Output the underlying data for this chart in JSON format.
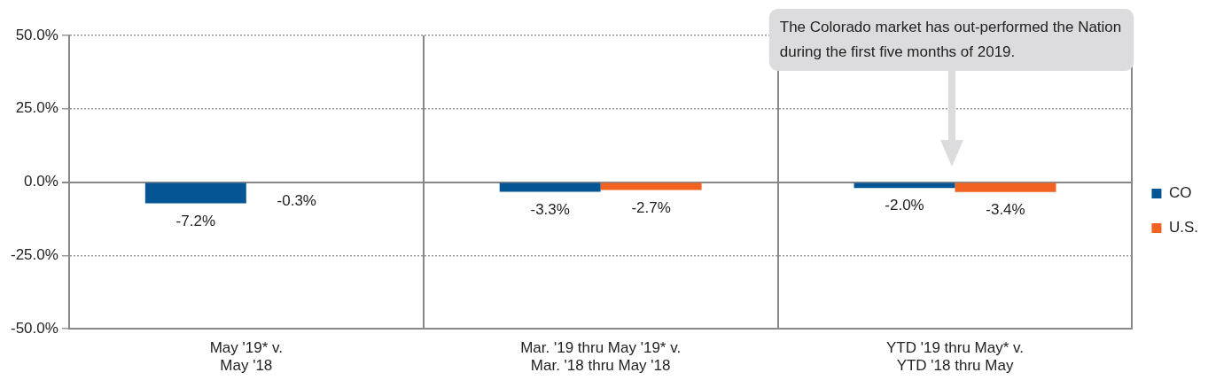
{
  "chart_data": {
    "type": "bar",
    "categories": [
      "May '19* v.\nMay '18",
      "Mar. '19 thru May '19* v.\nMar. '18 thru May '18",
      "YTD '19 thru May* v.\nYTD '18 thru May"
    ],
    "series": [
      {
        "name": "CO",
        "color": "#035693",
        "values": [
          -7.2,
          -3.3,
          -2.0
        ],
        "value_labels": [
          "-7.2%",
          "-3.3%",
          "-2.0%"
        ]
      },
      {
        "name": "U.S.",
        "color": "#f26322",
        "values": [
          -0.3,
          -2.7,
          -3.4
        ],
        "value_labels": [
          "-0.3%",
          "-2.7%",
          "-3.4%"
        ]
      }
    ],
    "ylim": [
      -50,
      50
    ],
    "yticks": [
      {
        "value": -50,
        "label": "-50.0%"
      },
      {
        "value": -25,
        "label": "-25.0%"
      },
      {
        "value": 0,
        "label": "0.0%"
      },
      {
        "value": 25,
        "label": "25.0%"
      },
      {
        "value": 50,
        "label": "50.0%"
      }
    ],
    "grid": true,
    "legend": "right",
    "annotations": [
      "The Colorado market has out-performed the Nation\nduring the first five months of 2019."
    ]
  }
}
